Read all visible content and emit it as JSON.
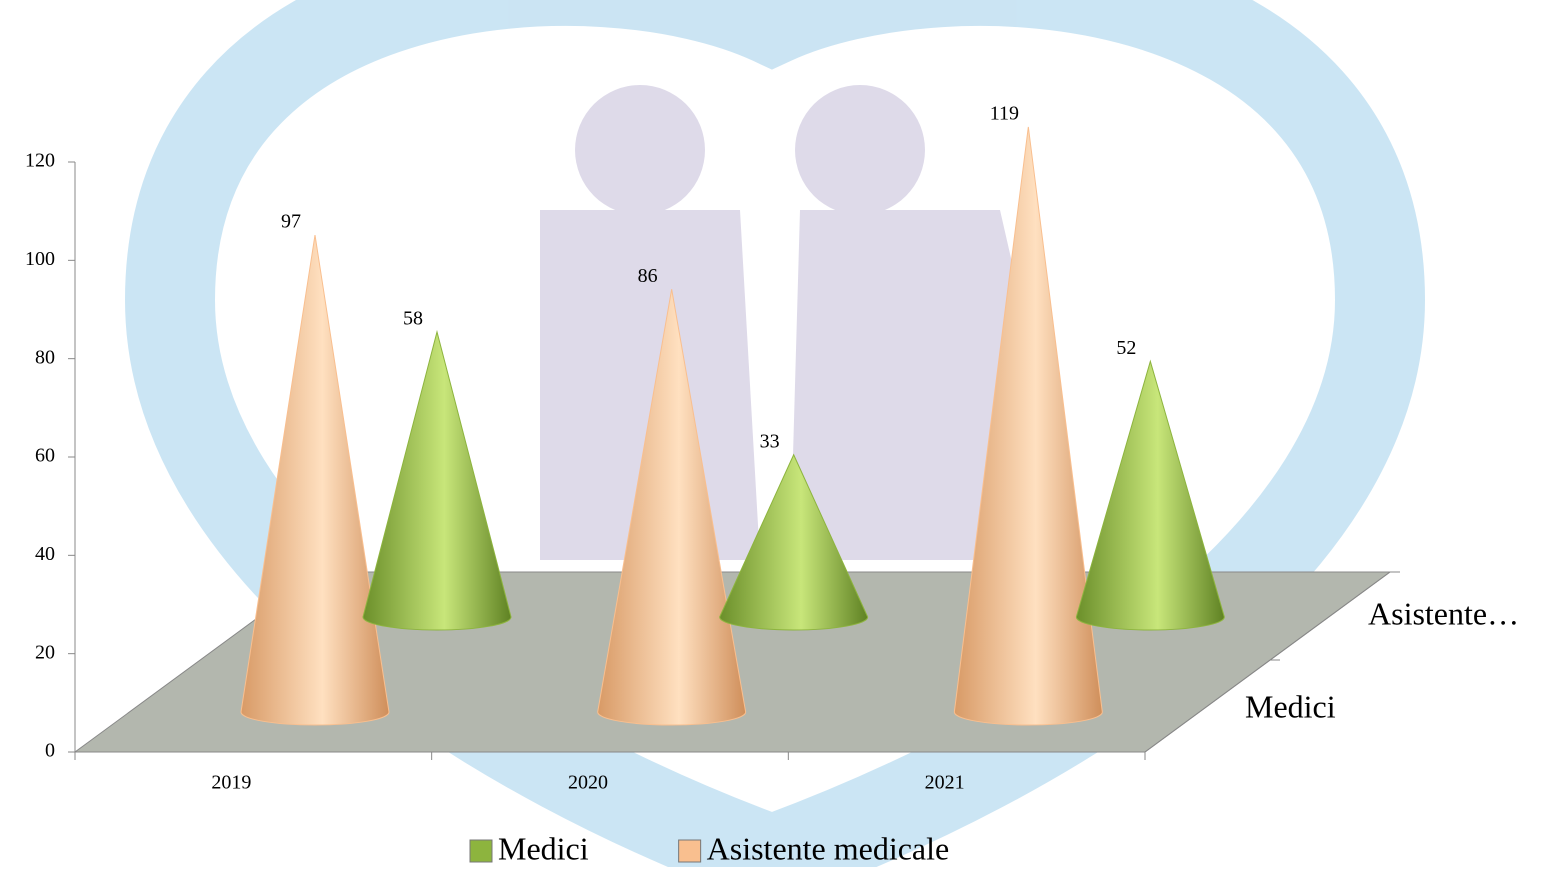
{
  "chart_data": {
    "type": "cone",
    "categories": [
      "2019",
      "2020",
      "2021"
    ],
    "series": [
      {
        "name": "Medici",
        "color": "#8db43e",
        "values": [
          58,
          33,
          52
        ]
      },
      {
        "name": "Asistente medicale",
        "color": "#f9bf8f",
        "values": [
          97,
          86,
          119
        ]
      }
    ],
    "depth_labels": [
      "Medici",
      "Asistente…"
    ],
    "ylim": [
      0,
      120
    ],
    "yticks": [
      0,
      20,
      40,
      60,
      80,
      100,
      120
    ],
    "legend": "bottom"
  }
}
